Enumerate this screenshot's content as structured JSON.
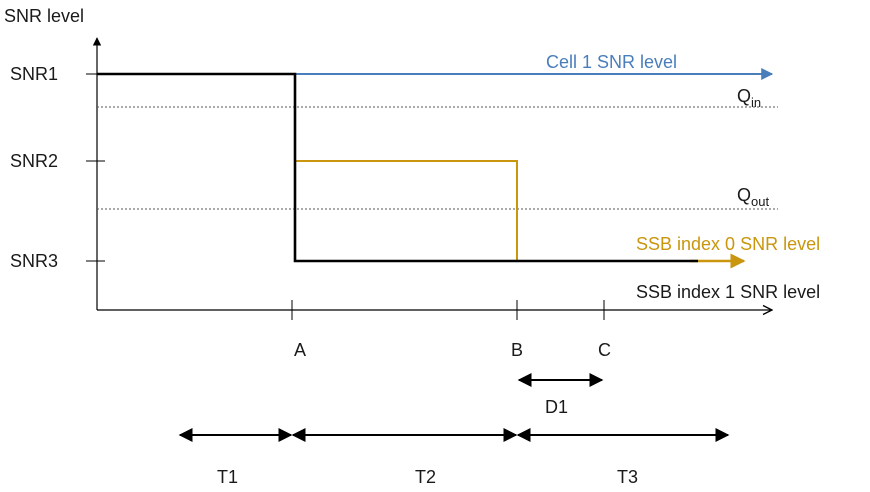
{
  "y_axis_label": "SNR level",
  "y_levels": [
    "SNR1",
    "SNR2",
    "SNR3"
  ],
  "x_points": [
    "A",
    "B",
    "C"
  ],
  "thresholds": [
    {
      "main": "Q",
      "sub": "in"
    },
    {
      "main": "Q",
      "sub": "out"
    }
  ],
  "series": [
    {
      "label": "Cell 1 SNR level",
      "color": "#4a7ebb"
    },
    {
      "label": "SSB index 0 SNR level",
      "color": "#c9960e"
    },
    {
      "label": "SSB index 1 SNR level",
      "color": "#000000"
    }
  ],
  "duration_label": "D1",
  "periods": [
    "T1",
    "T2",
    "T3"
  ],
  "colors": {
    "axis": "#000000",
    "threshold": "#555555",
    "text": "#1a1a1a"
  }
}
